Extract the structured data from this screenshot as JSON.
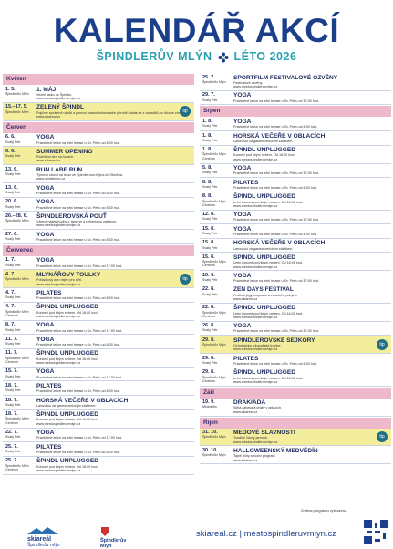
{
  "header": {
    "title": "KALENDÁŘ AKCÍ",
    "subtitle_left": "ŠPINDLERŮV MLÝN",
    "subtitle_right": "LÉTO 2026"
  },
  "columns": [
    [
      {
        "month": "Květen",
        "events": [
          {
            "date": "1. 5.",
            "place": "Špindlerův Mlýn",
            "title": "1. MÁJ",
            "desc": "Vezmi lásku do Špindlu.",
            "url": "www.mestospindleruvmlyn.cz"
          },
          {
            "date": "15.–17. 5.",
            "place": "Špindlerův Mlýn",
            "title": "ZELENÝ ŠPINDL",
            "desc": "Pojďme společně uklidit a pomoct krásné krkonošské přírodě dostat se z odpadků po dlouhé zimě.",
            "url": "www.skiareal.cz",
            "highlight": true,
            "tip": "tip"
          }
        ]
      },
      {
        "month": "Červen",
        "events": [
          {
            "date": "6. 6.",
            "place": "Svatý Petr",
            "title": "YOGA",
            "desc": "Pravidelné lekce na letní terase u Sv. Petru od 8:30 hod."
          },
          {
            "date": "6. 6.",
            "place": "Svatý Petr",
            "title": "SUMMER OPENING",
            "desc": "Rozběhni den na horách.",
            "url": "www.skiareal.cz",
            "highlight": true
          },
          {
            "date": "13. 6.",
            "place": "Svatý Petr",
            "title": "RUN LABE RUN",
            "desc": "Týmový závod na trase ze Špindlerova Mlýna do Skiořina.",
            "url": "www.runlaberun.cz"
          },
          {
            "date": "13. 6.",
            "place": "Svatý Petr",
            "title": "YOGA",
            "desc": "Pravidelné lekce na letní terase u Sv. Petru od 8:30 hod."
          },
          {
            "date": "20. 6.",
            "place": "Svatý Petr",
            "title": "YOGA",
            "desc": "Pravidelné lekce na letní terase u Sv. Petru od 8:30 hod."
          },
          {
            "date": "26.–28. 6.",
            "place": "Špindlerův Mlýn",
            "title": "ŠPINDLEROVSKÁ POUŤ",
            "desc": "Víkend nabitý hudbou, tancem a zpříjemnou zábavou.",
            "url": "www.mestospindleruvmlyn.cz"
          },
          {
            "date": "27. 6.",
            "place": "Svatý Petr",
            "title": "YOGA",
            "desc": "Pravidelné lekce na letní terase u Sv. Petru od 8:30 hod."
          }
        ]
      },
      {
        "month": "Červenec",
        "events": [
          {
            "date": "1. 7.",
            "place": "Svatý Petr",
            "title": "YOGA",
            "desc": "Pravidelné lekce na letní terase u Sv. Petru od 17:00 hod."
          },
          {
            "date": "4. 7.",
            "place": "Špindlerův Mlýn",
            "title": "MLYNÁŘOVY TOULKY",
            "desc": "Pohádkový den nejen pro děti.",
            "url": "www.mestospindleruvmlyn.cz",
            "highlight": true,
            "tip": "tip"
          },
          {
            "date": "4. 7.",
            "place": "Svatý Petr",
            "title": "PILATES",
            "desc": "Pravidelné lekce na letní terase u Sv. Petru od 8:30 hod."
          },
          {
            "date": "4. 7.",
            "place": "Špindlerův Mlýn Centrum",
            "title": "ŠPINDL UNPLUGGED",
            "desc": "Koncert pod širým nebem. Od 16:00 hod.",
            "url": "www.mestospindleruvmlyn.cz"
          },
          {
            "date": "8. 7.",
            "place": "Svatý Petr",
            "title": "YOGA",
            "desc": "Pravidelné lekce na letní terase u Sv. Petru od 17:00 hod."
          },
          {
            "date": "11. 7.",
            "place": "Svatý Petr",
            "title": "YOGA",
            "desc": "Pravidelné lekce na letní terase u Sv. Petru od 8:30 hod."
          },
          {
            "date": "11. 7.",
            "place": "Špindlerův Mlýn Centrum",
            "title": "ŠPINDL UNPLUGGED",
            "desc": "Koncert pod širým nebem. Od 16:00 hod.",
            "url": "www.mestospindleruvmlyn.cz"
          },
          {
            "date": "15. 7.",
            "place": "Svatý Petr",
            "title": "YOGA",
            "desc": "Pravidelné lekce na letní terase u Sv. Petru od 17:00 hod."
          },
          {
            "date": "18. 7.",
            "place": "Svatý Petr",
            "title": "PILATES",
            "desc": "Pravidelné lekce na letní terase u Sv. Petru od 8:30 hod."
          },
          {
            "date": "18. 7.",
            "place": "Svatý Petr",
            "title": "HORSKÁ VEČEŘE V OBLACÍCH",
            "desc": "Lanovkou za gastronomickým zážitkem."
          },
          {
            "date": "18. 7.",
            "place": "Špindlerův Mlýn Centrum",
            "title": "ŠPINDL UNPLUGGED",
            "desc": "Koncert pod širým nebem. Od 16:00 hod.",
            "url": "www.mestospindleruvmlyn.cz"
          },
          {
            "date": "22. 7.",
            "place": "Svatý Petr",
            "title": "YOGA",
            "desc": "Pravidelné lekce na letní terase u Sv. Petru od 17:00 hod."
          },
          {
            "date": "25. 7.",
            "place": "Svatý Petr",
            "title": "PILATES",
            "desc": "Pravidelné lekce na letní terase u Sv. Petru od 8:30 hod."
          },
          {
            "date": "25. 7.",
            "place": "Špindlerův Mlýn Centrum",
            "title": "ŠPINDL UNPLUGGED",
            "desc": "Koncert pod širým nebem. Od 16:00 hod.",
            "url": "www.mestospindleruvmlyn.cz"
          }
        ]
      }
    ],
    [
      {
        "events": [
          {
            "date": "25. 7.",
            "place": "Špindlerův Mlýn",
            "title": "SPORTFILM FESTIVALOVÉ OZVĚNY",
            "desc": "Festivalové ozvěny.",
            "url": "www.mestospindleruvmlyn.cz"
          },
          {
            "date": "29. 7.",
            "place": "Svatý Petr",
            "title": "YOGA",
            "desc": "Pravidelné lekce na letní terase u Sv. Petru od 17:00 hod."
          }
        ]
      },
      {
        "month": "Srpen",
        "events": [
          {
            "date": "1. 8.",
            "place": "Svatý Petr",
            "title": "YOGA",
            "desc": "Pravidelné lekce na letní terase u Sv. Petru od 8:30 hod."
          },
          {
            "date": "1. 8.",
            "place": "Svatý Petr",
            "title": "HORSKÁ VEČEŘE V OBLACÍCH",
            "desc": "Lanovkou za gastronomickým zážitkem."
          },
          {
            "date": "1. 8.",
            "place": "Špindlerův Mlýn Centrum",
            "title": "ŠPINDL UNPLUGGED",
            "desc": "Koncert pod širým nebem. Od 16:00 hod.",
            "url": "www.mestospindleruvmlyn.cz"
          },
          {
            "date": "5. 8.",
            "place": "Svatý Petr",
            "title": "YOGA",
            "desc": "Pravidelné lekce na letní terase u Sv. Petru od 17:00 hod."
          },
          {
            "date": "8. 8.",
            "place": "Svatý Petr",
            "title": "PILATES",
            "desc": "Pravidelné lekce na letní terase u Sv. Petru od 8:30 hod."
          },
          {
            "date": "8. 8.",
            "place": "Špindlerův Mlýn Centrum",
            "title": "ŠPINDL UNPLUGGED",
            "desc": "Letní koncert pod širým nebem. Od 16:00 hod.",
            "url": "www.mestospindleruvmlyn.cz"
          },
          {
            "date": "12. 8.",
            "place": "Svatý Petr",
            "title": "YOGA",
            "desc": "Pravidelné lekce na letní terase u Sv. Petru od 17:00 hod."
          },
          {
            "date": "15. 8.",
            "place": "Svatý Petr",
            "title": "YOGA",
            "desc": "Pravidelné lekce na letní terase u Sv. Petru od 8:30 hod."
          },
          {
            "date": "15. 8.",
            "place": "Svatý Petr",
            "title": "HORSKÁ VEČEŘE V OBLACÍCH",
            "desc": "Lanovkou za gastronomickým zážitkem."
          },
          {
            "date": "15. 8.",
            "place": "Špindlerův Mlýn Centrum",
            "title": "ŠPINDL UNPLUGGED",
            "desc": "Letní koncert pod širým nebem. Od 16:00 hod.",
            "url": "www.mestospindleruvmlyn.cz"
          },
          {
            "date": "19. 8.",
            "place": "Svatý Petr",
            "title": "YOGA",
            "desc": "Pravidelné lekce na letní terase u Sv. Petru od 17:00 hod."
          },
          {
            "date": "22. 8.",
            "place": "Svatý Petr",
            "title": "ZEN DAYS FESTIVAL",
            "desc": "Festival jógy, inspirace a zdravého pohybu.",
            "url": "www.skiareal.cz"
          },
          {
            "date": "22. 8.",
            "place": "Špindlerův Mlýn Centrum",
            "title": "ŠPINDL UNPLUGGED",
            "desc": "Letní koncert pod širým nebem. Od 16:00 hod.",
            "url": "www.mestospindleruvmlyn.cz"
          },
          {
            "date": "26. 8.",
            "place": "Svatý Petr",
            "title": "YOGA",
            "desc": "Pravidelné lekce na letní terase u Sv. Petru od 17:00 hod."
          },
          {
            "date": "29. 8.",
            "place": "Špindlerův Mlýn",
            "title": "ŠPINDLEROVSKÉ SEJKORY",
            "desc": "Ochutnávka krkonošské tradice.",
            "url": "www.mestospindleruvmlyn.cz",
            "highlight": true,
            "tip": "tip"
          },
          {
            "date": "29. 8.",
            "place": "Svatý Petr",
            "title": "PILATES",
            "desc": "Pravidelné lekce na letní terase u Sv. Petru od 8:30 hod."
          },
          {
            "date": "29. 8.",
            "place": "Špindlerův Mlýn Centrum",
            "title": "ŠPINDL UNPLUGGED",
            "desc": "Letní koncert pod širým nebem. Od 16:00 hod.",
            "url": "www.mestospindleruvmlyn.cz"
          }
        ]
      },
      {
        "month": "Září",
        "events": [
          {
            "date": "19. 9.",
            "place": "Medvědín",
            "title": "DRAKIÁDA",
            "desc": "Slétá zábava a draky v oblacích.",
            "url": "www.skiareal.cz"
          }
        ]
      },
      {
        "month": "Říjen",
        "events": [
          {
            "date": "31. 10.",
            "place": "Špindlerův Mlýn",
            "title": "MEDOVÉ SLAVNOSTI",
            "desc": "Tradiční lidový jarmark.",
            "url": "www.mestospindleruvmlyn.cz",
            "highlight": true,
            "tip": "tip"
          },
          {
            "date": "30. 10.",
            "place": "Špindlerův Mlýn",
            "title": "HALLOWEENSKÝ MEDVĚDÍN",
            "desc": "Tajné dílny a noční program.",
            "url": "www.skiareal.cz"
          }
        ]
      }
    ]
  ],
  "footer": {
    "note": "Změna programu vyhrazena.",
    "links": "skiareal.cz | mestospindleruvmlyn.cz",
    "logo_left_1": "skiareál",
    "logo_left_2": "Špindlerův mlýn",
    "logo_right_1": "Špindlerův",
    "logo_right_2": "Mlýn"
  }
}
